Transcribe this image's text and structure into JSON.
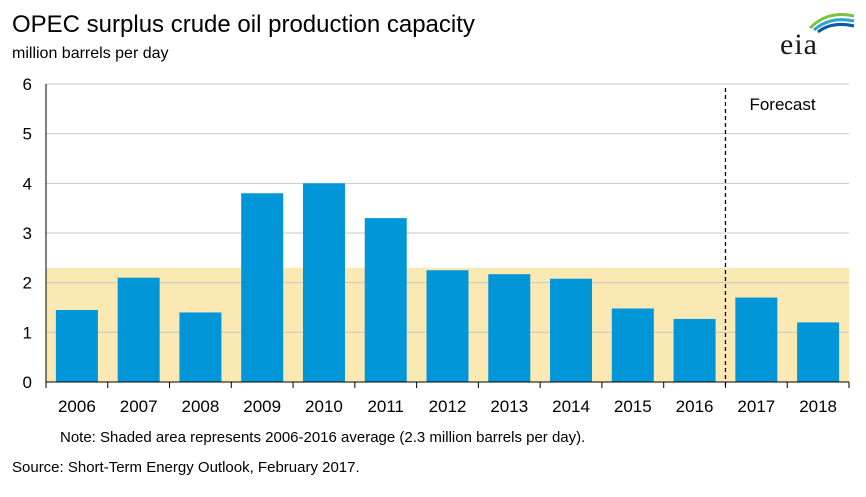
{
  "header": {
    "title": "OPEC surplus crude oil production capacity",
    "subtitle": "million  barrels per day",
    "logo_text": "eia"
  },
  "footer": {
    "note": "Note: Shaded area represents 2006-2016 average (2.3 million barrels per day).",
    "source": "Source: Short-Term Energy Outlook, February 2017."
  },
  "chart_data": {
    "type": "bar",
    "title": "OPEC surplus crude oil production capacity",
    "ylabel": "million  barrels per day",
    "xlabel": "",
    "categories": [
      "2006",
      "2007",
      "2008",
      "2009",
      "2010",
      "2011",
      "2012",
      "2013",
      "2014",
      "2015",
      "2016",
      "2017",
      "2018"
    ],
    "values": [
      1.45,
      2.1,
      1.4,
      3.8,
      4.0,
      3.3,
      2.25,
      2.17,
      2.08,
      1.48,
      1.27,
      1.7,
      1.2
    ],
    "ylim": [
      0,
      6
    ],
    "yticks": [
      0,
      1,
      2,
      3,
      4,
      5,
      6
    ],
    "grid": true,
    "bar_color": "#0096d7",
    "shaded_band": {
      "from": 0,
      "to": 2.3,
      "color": "#fbe9b4",
      "meaning": "2006-2016 average"
    },
    "forecast": {
      "label": "Forecast",
      "starts_after": "2016"
    }
  }
}
